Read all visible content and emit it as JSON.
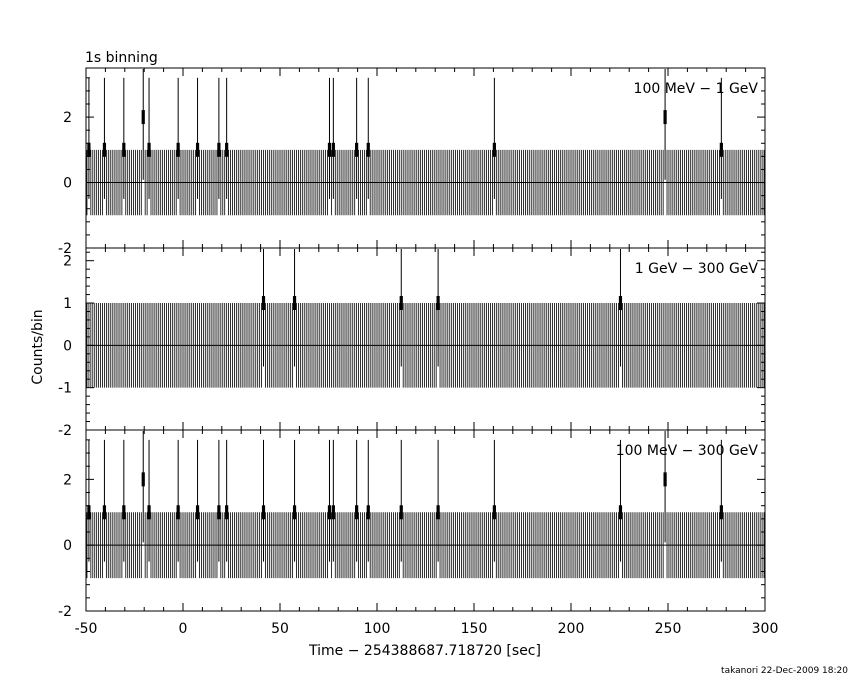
{
  "chart_data": {
    "type": "line",
    "title": "1s binning",
    "xlabel": "Time − 254388687.718720 [sec]",
    "ylabel": "Counts/bin",
    "xlim": [
      -50,
      300
    ],
    "x_ticks": [
      -50,
      0,
      50,
      100,
      150,
      200,
      250,
      300
    ],
    "bin_width": 1,
    "footer": "takanori 22-Dec-2009 18:20",
    "panels": [
      {
        "name": "100 MeV − 1 GeV",
        "ylim": [
          -2,
          3.5
        ],
        "y_ticks": [
          -2,
          0,
          2
        ],
        "events": [
          {
            "t": -49,
            "counts": 1
          },
          {
            "t": -41,
            "counts": 1
          },
          {
            "t": -31,
            "counts": 1
          },
          {
            "t": -21,
            "counts": 2
          },
          {
            "t": -18,
            "counts": 1
          },
          {
            "t": -3,
            "counts": 1
          },
          {
            "t": 7,
            "counts": 1
          },
          {
            "t": 18,
            "counts": 1
          },
          {
            "t": 22,
            "counts": 1
          },
          {
            "t": 75,
            "counts": 1
          },
          {
            "t": 77,
            "counts": 1
          },
          {
            "t": 89,
            "counts": 1
          },
          {
            "t": 95,
            "counts": 1
          },
          {
            "t": 160,
            "counts": 1
          },
          {
            "t": 248,
            "counts": 2
          },
          {
            "t": 277,
            "counts": 1
          }
        ]
      },
      {
        "name": "1 GeV − 300 GeV",
        "ylim": [
          -2,
          2.3
        ],
        "y_ticks": [
          -2,
          -1,
          0,
          1,
          2
        ],
        "events": [
          {
            "t": 41,
            "counts": 1
          },
          {
            "t": 57,
            "counts": 1
          },
          {
            "t": 112,
            "counts": 1
          },
          {
            "t": 131,
            "counts": 1
          },
          {
            "t": 225,
            "counts": 1
          }
        ]
      },
      {
        "name": "100 MeV − 300 GeV",
        "ylim": [
          -2,
          3.5
        ],
        "y_ticks": [
          -2,
          0,
          2
        ],
        "events": [
          {
            "t": -49,
            "counts": 1
          },
          {
            "t": -41,
            "counts": 1
          },
          {
            "t": -31,
            "counts": 1
          },
          {
            "t": -21,
            "counts": 2
          },
          {
            "t": -18,
            "counts": 1
          },
          {
            "t": -3,
            "counts": 1
          },
          {
            "t": 7,
            "counts": 1
          },
          {
            "t": 18,
            "counts": 1
          },
          {
            "t": 22,
            "counts": 1
          },
          {
            "t": 41,
            "counts": 1
          },
          {
            "t": 57,
            "counts": 1
          },
          {
            "t": 75,
            "counts": 1
          },
          {
            "t": 77,
            "counts": 1
          },
          {
            "t": 89,
            "counts": 1
          },
          {
            "t": 95,
            "counts": 1
          },
          {
            "t": 112,
            "counts": 1
          },
          {
            "t": 131,
            "counts": 1
          },
          {
            "t": 160,
            "counts": 1
          },
          {
            "t": 225,
            "counts": 1
          },
          {
            "t": 248,
            "counts": 2
          },
          {
            "t": 277,
            "counts": 1
          }
        ]
      }
    ]
  }
}
